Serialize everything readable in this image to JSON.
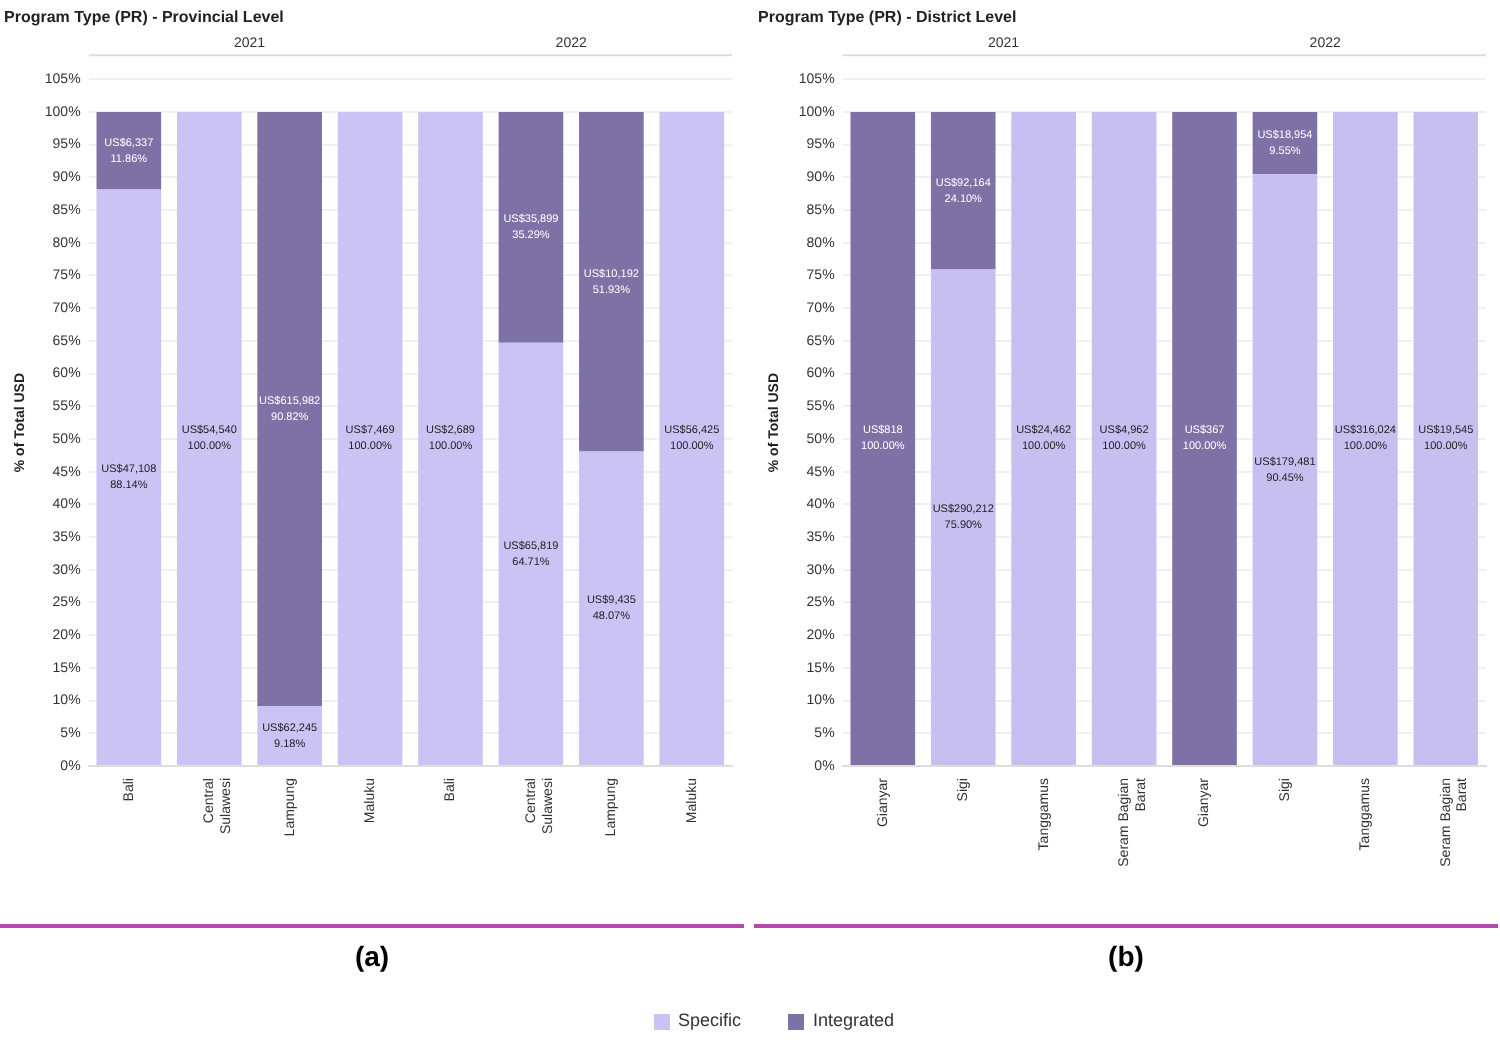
{
  "chart_data": [
    {
      "type": "bar",
      "title": "Program Type (PR) - Provincial Level",
      "ylabel": "% of Total USD",
      "categories": [
        "Bali",
        "Central Sulawesi",
        "Lampung",
        "Maluku",
        "Bali",
        "Central Sulawesi",
        "Lampung",
        "Maluku"
      ],
      "stacked": true,
      "ylim": [
        0,
        105
      ],
      "yticks": [
        {
          "value": 0,
          "label": "0%"
        },
        {
          "value": 5,
          "label": "5%"
        },
        {
          "value": 10,
          "label": "10%"
        },
        {
          "value": 15,
          "label": "15%"
        },
        {
          "value": 20,
          "label": "20%"
        },
        {
          "value": 25,
          "label": "25%"
        },
        {
          "value": 30,
          "label": "30%"
        },
        {
          "value": 35,
          "label": "35%"
        },
        {
          "value": 40,
          "label": "40%"
        },
        {
          "value": 45,
          "label": "45%"
        },
        {
          "value": 50,
          "label": "50%"
        },
        {
          "value": 55,
          "label": "55%"
        },
        {
          "value": 60,
          "label": "60%"
        },
        {
          "value": 65,
          "label": "65%"
        },
        {
          "value": 70,
          "label": "70%"
        },
        {
          "value": 75,
          "label": "75%"
        },
        {
          "value": 80,
          "label": "80%"
        },
        {
          "value": 85,
          "label": "85%"
        },
        {
          "value": 90,
          "label": "90%"
        },
        {
          "value": 95,
          "label": "95%"
        },
        {
          "value": 100,
          "label": "100%"
        },
        {
          "value": 105,
          "label": "105%"
        }
      ],
      "grid": "y",
      "legend": "bottom",
      "series": [
        {
          "name": "Specific",
          "color": "#cbc3f3",
          "values": [
            88.14,
            100,
            9.18,
            100,
            100,
            64.71,
            48.07,
            100
          ],
          "value_labels": [
            "US$47,108\n88.14%",
            "US$54,540\n100.00%",
            "US$62,245\n9.18%",
            "US$7,469\n100.00%",
            "US$2,689\n100.00%",
            "US$65,819\n64.71%",
            "US$9,435\n48.07%",
            "US$56,425\n100.00%"
          ]
        },
        {
          "name": "Integrated",
          "color": "#7d71a6",
          "values": [
            11.86,
            null,
            90.82,
            null,
            null,
            35.29,
            51.93,
            null
          ],
          "value_labels": [
            "US$6,337\n11.86%",
            null,
            "US$615,982\n90.82%",
            null,
            null,
            "US$35,899\n35.29%",
            "US$10,192\n51.93%",
            null
          ]
        }
      ],
      "annotations": [
        "2021",
        "2022",
        "(a)"
      ]
    },
    {
      "type": "bar",
      "title": "Program Type (PR) - District Level",
      "ylabel": "% of Total USD",
      "categories": [
        "Gianyar",
        "Sigi",
        "Tanggamus",
        "Seram Bagian Barat",
        "Gianyar",
        "Sigi",
        "Tanggamus",
        "Seram Bagian Barat"
      ],
      "stacked": true,
      "ylim": [
        0,
        105
      ],
      "yticks": [
        {
          "value": 0,
          "label": "0%"
        },
        {
          "value": 5,
          "label": "5%"
        },
        {
          "value": 10,
          "label": "10%"
        },
        {
          "value": 15,
          "label": "15%"
        },
        {
          "value": 20,
          "label": "20%"
        },
        {
          "value": 25,
          "label": "25%"
        },
        {
          "value": 30,
          "label": "30%"
        },
        {
          "value": 35,
          "label": "35%"
        },
        {
          "value": 40,
          "label": "40%"
        },
        {
          "value": 45,
          "label": "45%"
        },
        {
          "value": 50,
          "label": "50%"
        },
        {
          "value": 55,
          "label": "55%"
        },
        {
          "value": 60,
          "label": "60%"
        },
        {
          "value": 65,
          "label": "65%"
        },
        {
          "value": 70,
          "label": "70%"
        },
        {
          "value": 75,
          "label": "75%"
        },
        {
          "value": 80,
          "label": "80%"
        },
        {
          "value": 85,
          "label": "85%"
        },
        {
          "value": 90,
          "label": "90%"
        },
        {
          "value": 95,
          "label": "95%"
        },
        {
          "value": 100,
          "label": "100%"
        },
        {
          "value": 105,
          "label": "105%"
        }
      ],
      "grid": "y",
      "series": [
        {
          "color": "#c6bfef",
          "values": [
            null,
            75.9,
            100,
            100,
            null,
            90.45,
            100,
            100
          ],
          "value_labels": [
            null,
            "US$290,212\n75.90%",
            "US$24,462\n100.00%",
            "US$4,962\n100.00%",
            null,
            "US$179,481\n90.45%",
            "US$316,024\n100.00%",
            "US$19,545\n100.00%"
          ]
        },
        {
          "color": "#7d71a6",
          "values": [
            100,
            24.1,
            null,
            null,
            100,
            9.55,
            null,
            null
          ],
          "value_labels": [
            "US$818\n100.00%",
            "US$92,164\n24.10%",
            null,
            null,
            "US$367\n100.00%",
            "US$18,954\n9.55%",
            null,
            null
          ]
        }
      ],
      "annotations": [
        "2021",
        "2022",
        "(b)"
      ]
    }
  ]
}
